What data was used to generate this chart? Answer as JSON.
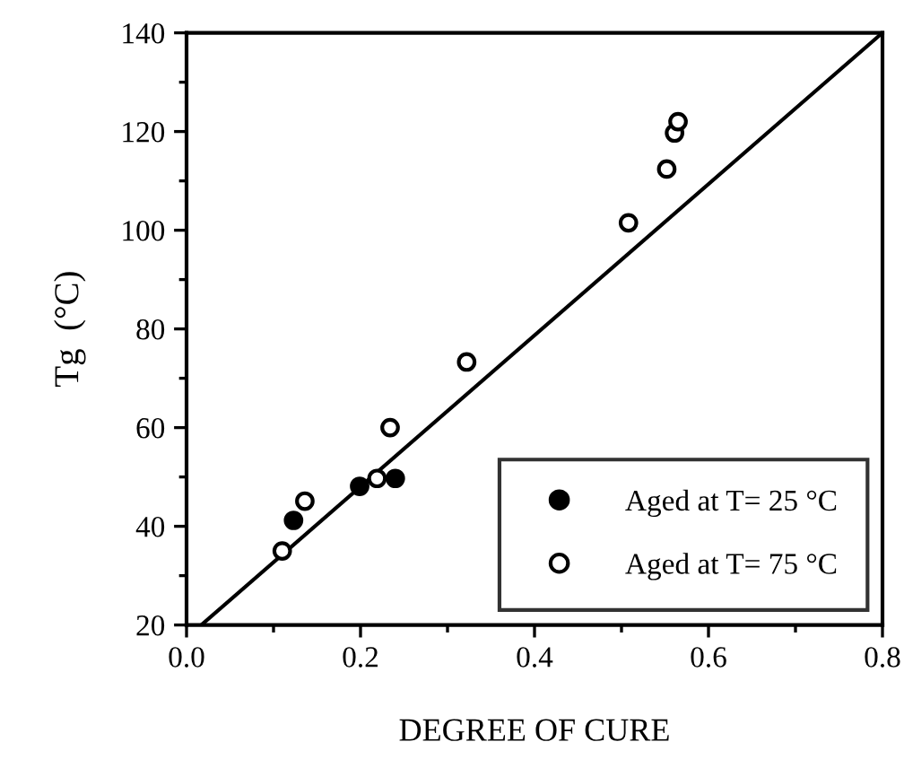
{
  "chart_data": {
    "type": "scatter",
    "xlabel": "DEGREE OF CURE",
    "ylabel": "Tg  (°C)",
    "xlim": [
      0.0,
      0.8
    ],
    "xticks": [
      {
        "value": 0.0,
        "label": "0.0"
      },
      {
        "value": 0.2,
        "label": "0.2"
      },
      {
        "value": 0.4,
        "label": "0.4"
      },
      {
        "value": 0.6,
        "label": "0.6"
      },
      {
        "value": 0.8,
        "label": "0.8"
      }
    ],
    "ylim": [
      20,
      140
    ],
    "yticks": [
      20,
      40,
      60,
      80,
      100,
      120,
      140
    ],
    "grid": false,
    "legend": "bottom right",
    "series": [
      {
        "name": "Aged at T= 25 °C",
        "marker": "circle",
        "color": "#000000",
        "x": [
          0.123,
          0.199,
          0.24
        ],
        "values": [
          41.2,
          48.1,
          49.7
        ]
      },
      {
        "name": "Aged at T= 75 °C",
        "marker": "circle",
        "color": "#ffffff",
        "x": [
          0.11,
          0.136,
          0.219,
          0.234,
          0.322,
          0.508,
          0.552,
          0.561,
          0.565
        ],
        "values": [
          35,
          45.1,
          49.7,
          60,
          73.3,
          101.5,
          112.4,
          119.7,
          122
        ]
      },
      {
        "type": "line",
        "color": "#000000",
        "line_style": "solid",
        "x": [
          0.017,
          0.8
        ],
        "values": [
          20,
          140
        ]
      }
    ]
  }
}
